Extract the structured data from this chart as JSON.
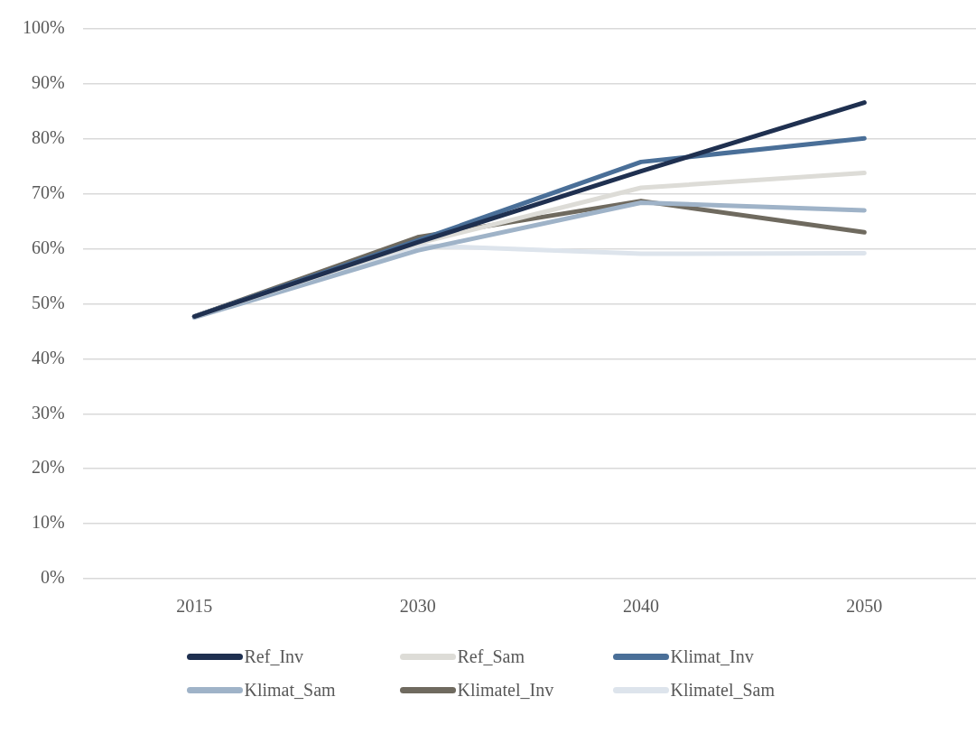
{
  "chart_data": {
    "type": "line",
    "categories": [
      "2015",
      "2030",
      "2040",
      "2050"
    ],
    "series": [
      {
        "name": "Ref_Inv",
        "color": "#1f3050",
        "values": [
          0.477,
          0.612,
          0.741,
          0.866
        ]
      },
      {
        "name": "Ref_Sam",
        "color": "#dddcd7",
        "values": [
          0.477,
          0.61,
          0.711,
          0.738
        ]
      },
      {
        "name": "Klimat_Inv",
        "color": "#4a6f98",
        "values": [
          0.477,
          0.615,
          0.758,
          0.801
        ]
      },
      {
        "name": "Klimat_Sam",
        "color": "#9fb3c8",
        "values": [
          0.475,
          0.597,
          0.684,
          0.67
        ]
      },
      {
        "name": "Klimatel_Inv",
        "color": "#6f6a5f",
        "values": [
          0.477,
          0.621,
          0.687,
          0.63
        ]
      },
      {
        "name": "Klimatel_Sam",
        "color": "#dde4ec",
        "values": [
          0.476,
          0.606,
          0.591,
          0.592
        ]
      }
    ],
    "ylim": [
      0,
      1
    ],
    "yticks": [
      {
        "value": 0,
        "label": "0%"
      },
      {
        "value": 0.1,
        "label": "10%"
      },
      {
        "value": 0.2,
        "label": "20%"
      },
      {
        "value": 0.3,
        "label": "30%"
      },
      {
        "value": 0.4,
        "label": "40%"
      },
      {
        "value": 0.5,
        "label": "50%"
      },
      {
        "value": 0.6,
        "label": "60%"
      },
      {
        "value": 0.7,
        "label": "70%"
      },
      {
        "value": 0.8,
        "label": "80%"
      },
      {
        "value": 0.9,
        "label": "90%"
      },
      {
        "value": 1,
        "label": "100%"
      }
    ],
    "grid": "y",
    "legend": "bottom",
    "marker": "none",
    "line_style": "solid"
  }
}
